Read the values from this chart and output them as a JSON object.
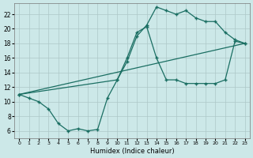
{
  "xlabel": "Humidex (Indice chaleur)",
  "xlim": [
    -0.5,
    23.5
  ],
  "ylim": [
    5,
    23.5
  ],
  "xticks": [
    0,
    1,
    2,
    3,
    4,
    5,
    6,
    7,
    8,
    9,
    10,
    11,
    12,
    13,
    14,
    15,
    16,
    17,
    18,
    19,
    20,
    21,
    22,
    23
  ],
  "yticks": [
    6,
    8,
    10,
    12,
    14,
    16,
    18,
    20,
    22
  ],
  "bg_color": "#cce8e8",
  "grid_color": "#adc8c8",
  "line_color": "#1a6e62",
  "line1_x": [
    0,
    1,
    2,
    3,
    4,
    5,
    6,
    7,
    8,
    9,
    10,
    11,
    12,
    13,
    14,
    15,
    16,
    17,
    18,
    19,
    20,
    21,
    22,
    23
  ],
  "line1_y": [
    11,
    10.5,
    10,
    9,
    7,
    6,
    6.3,
    6,
    6.2,
    10.5,
    13,
    16,
    19.5,
    20.3,
    16,
    13,
    13,
    12.5,
    12.5,
    12.5,
    12.5,
    13,
    18.3,
    18
  ],
  "line2_x": [
    0,
    23
  ],
  "line2_y": [
    11,
    18
  ],
  "line3_x": [
    0,
    10,
    11,
    12,
    13,
    14,
    15,
    16,
    17,
    18,
    19,
    20,
    21,
    22,
    23
  ],
  "line3_y": [
    11,
    13,
    15.5,
    19,
    20.5,
    23,
    22.5,
    22,
    22.5,
    21.5,
    21,
    21,
    19.5,
    18.5,
    18
  ]
}
